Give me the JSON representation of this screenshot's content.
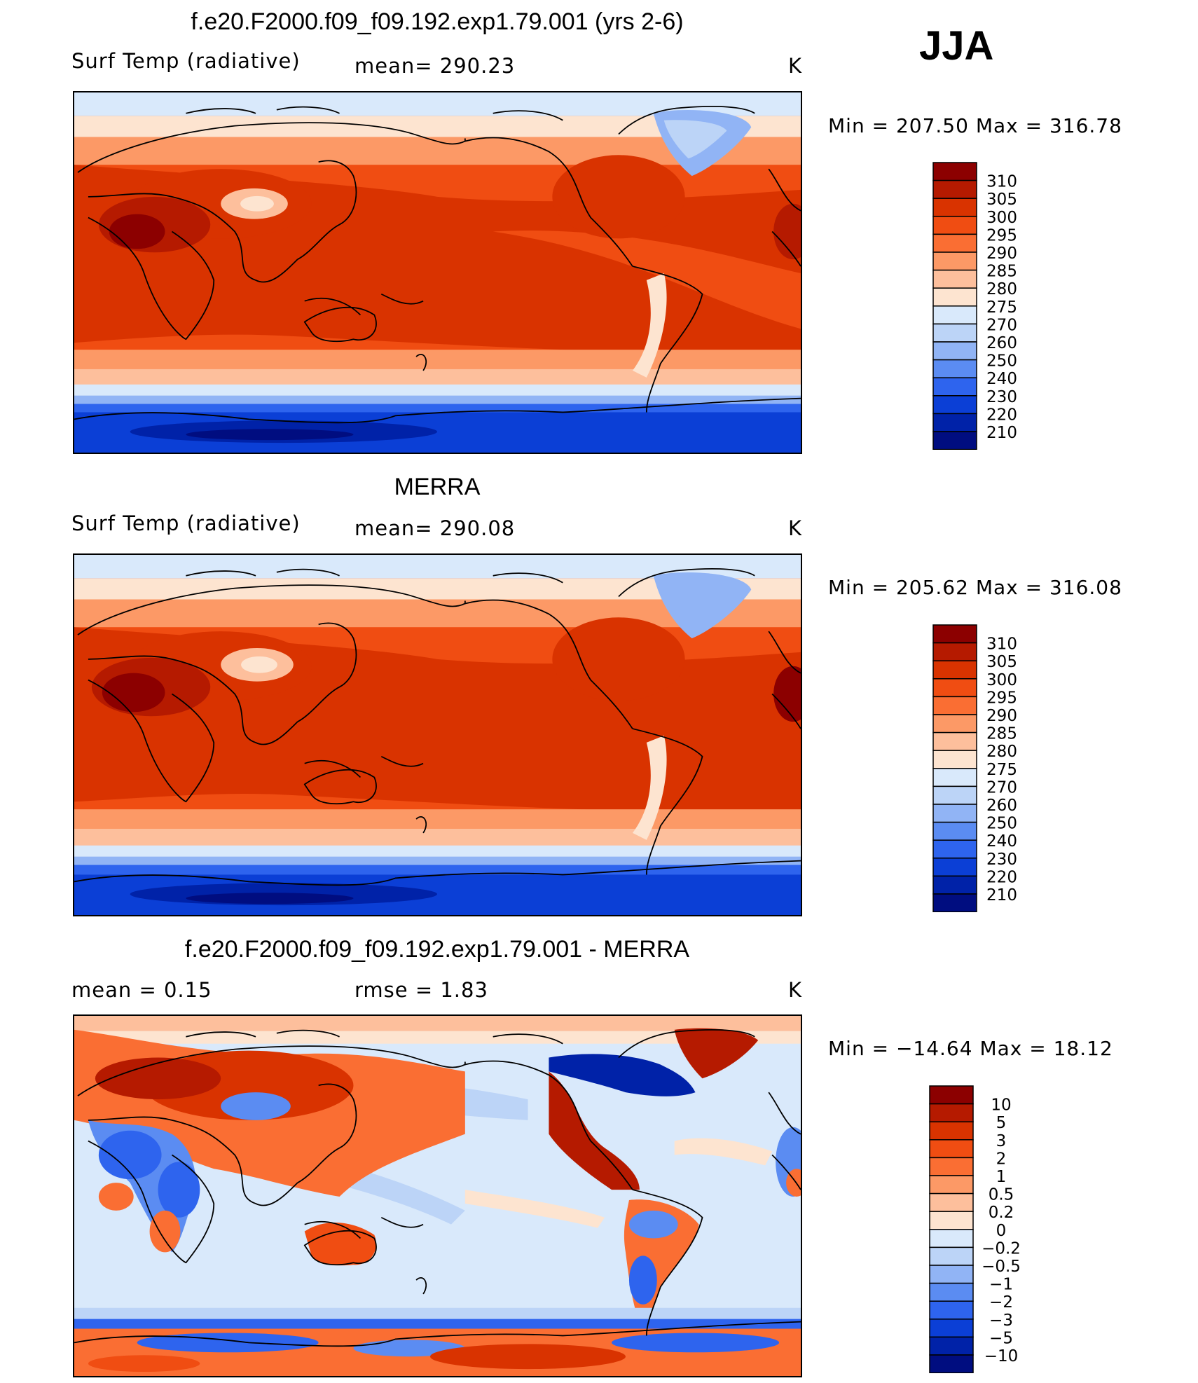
{
  "season": "JJA",
  "panels": [
    {
      "title": "f.e20.F2000.f09_f09.192.exp1.79.001 (yrs 2-6)",
      "left_label": "Surf Temp (radiative)",
      "mid_label": "mean=  290.23",
      "units": "K",
      "minmax": "Min  =  207.50  Max  =  316.78",
      "type": "absolute"
    },
    {
      "title": "MERRA",
      "left_label": "Surf Temp (radiative)",
      "mid_label": "mean=  290.08",
      "units": "K",
      "minmax": "Min  =  205.62  Max  =  316.08",
      "type": "absolute"
    },
    {
      "title": "f.e20.F2000.f09_f09.192.exp1.79.001 - MERRA",
      "left_label": "mean  =      0.15",
      "mid_label": "rmse  =      1.83",
      "units": "K",
      "minmax": "Min  =  −14.64  Max  =    18.12",
      "type": "difference"
    }
  ],
  "colorbars": {
    "absolute": {
      "labels": [
        "310",
        "305",
        "300",
        "295",
        "290",
        "285",
        "280",
        "275",
        "270",
        "260",
        "250",
        "240",
        "230",
        "220",
        "210"
      ],
      "colors": [
        "#8c0000",
        "#b51a00",
        "#d93300",
        "#f04d12",
        "#fa6e33",
        "#fc9966",
        "#fdbf9c",
        "#fde4d0",
        "#d9e9fb",
        "#bcd4f7",
        "#91b4f5",
        "#5b8cf2",
        "#2e64ee",
        "#0b3fd6",
        "#0022a8",
        "#000d80"
      ]
    },
    "difference": {
      "labels": [
        "10",
        "5",
        "3",
        "2",
        "1",
        "0.5",
        "0.2",
        "0",
        "−0.2",
        "−0.5",
        "−1",
        "−2",
        "−3",
        "−5",
        "−10"
      ],
      "colors": [
        "#8c0000",
        "#b51a00",
        "#d93300",
        "#f04d12",
        "#fa6e33",
        "#fc9966",
        "#fdbf9c",
        "#fde4d0",
        "#d9e9fb",
        "#bcd4f7",
        "#91b4f5",
        "#5b8cf2",
        "#2e64ee",
        "#0b3fd6",
        "#0022a8",
        "#000d80"
      ]
    }
  }
}
